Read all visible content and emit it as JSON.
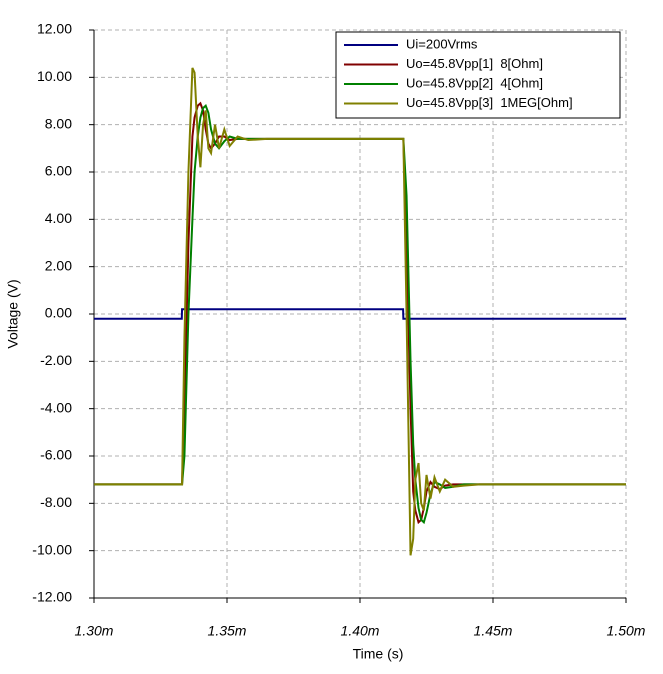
{
  "chart_data": {
    "type": "line",
    "xlabel": "Time (s)",
    "ylabel": "Voltage (V)",
    "xlim": [
      0.0013,
      0.0015
    ],
    "xticks": [
      {
        "value": 0.0013,
        "label": "1.30m"
      },
      {
        "value": 0.00135,
        "label": "1.35m"
      },
      {
        "value": 0.0014,
        "label": "1.40m"
      },
      {
        "value": 0.00145,
        "label": "1.45m"
      },
      {
        "value": 0.0015,
        "label": "1.50m"
      }
    ],
    "ylim": [
      -12,
      12
    ],
    "yticks": [
      {
        "value": 12,
        "label": "12.00"
      },
      {
        "value": 10,
        "label": "10.00"
      },
      {
        "value": 8,
        "label": "8.00"
      },
      {
        "value": 6,
        "label": "6.00"
      },
      {
        "value": 4,
        "label": "4.00"
      },
      {
        "value": 2,
        "label": "2.00"
      },
      {
        "value": 0,
        "label": "0.00"
      },
      {
        "value": -2,
        "label": "-2.00"
      },
      {
        "value": -4,
        "label": "-4.00"
      },
      {
        "value": -6,
        "label": "-6.00"
      },
      {
        "value": -8,
        "label": "-8.00"
      },
      {
        "value": -10,
        "label": "-10.00"
      },
      {
        "value": -12,
        "label": "-12.00"
      }
    ],
    "grid": true,
    "legend": "upper right",
    "x": [
      0.0013,
      0.001333,
      0.0013331,
      0.001334,
      0.0013355,
      0.001337,
      0.0013378,
      0.001339,
      0.00134,
      0.001341,
      0.001342,
      0.001343,
      0.001344,
      0.0013455,
      0.001347,
      0.001349,
      0.001351,
      0.001354,
      0.001358,
      0.001365,
      0.001415,
      0.0014162,
      0.0014163,
      0.0014175,
      0.001419,
      0.00142,
      0.0014208,
      0.001422,
      0.001423,
      0.001424,
      0.001425,
      0.0014265,
      0.001428,
      0.00143,
      0.001432,
      0.001435,
      0.001439,
      0.001445,
      0.0015
    ],
    "series": [
      {
        "name": "Ui=200Vrms",
        "color": "#000080",
        "values": [
          -0.2,
          -0.2,
          0.2,
          0.2,
          0.2,
          0.2,
          0.2,
          0.2,
          0.2,
          0.2,
          0.2,
          0.2,
          0.2,
          0.2,
          0.2,
          0.2,
          0.2,
          0.2,
          0.2,
          0.2,
          0.2,
          0.2,
          -0.2,
          -0.2,
          -0.2,
          -0.2,
          -0.2,
          -0.2,
          -0.2,
          -0.2,
          -0.2,
          -0.2,
          -0.2,
          -0.2,
          -0.2,
          -0.2,
          -0.2,
          -0.2,
          -0.2
        ]
      },
      {
        "name": "Uo=45.8Vpp[1]  8[Ohm]",
        "color": "#800000",
        "values": [
          -7.2,
          -7.2,
          -7.2,
          -4,
          3,
          7.5,
          8.3,
          8.8,
          8.9,
          8.6,
          7.8,
          7.2,
          7.0,
          7.2,
          7.5,
          7.5,
          7.35,
          7.4,
          7.4,
          7.4,
          7.4,
          7.4,
          7.4,
          3,
          -4,
          -7.5,
          -8.3,
          -8.8,
          -8.7,
          -8.2,
          -7.5,
          -7.1,
          -7.3,
          -7.4,
          -7.25,
          -7.2,
          -7.2,
          -7.2,
          -7.2
        ]
      },
      {
        "name": "Uo=45.8Vpp[2]  4[Ohm]",
        "color": "#008000",
        "values": [
          -7.2,
          -7.2,
          -7.2,
          -6,
          0,
          4,
          6,
          7.5,
          8.3,
          8.7,
          8.8,
          8.5,
          7.8,
          7.2,
          7.0,
          7.3,
          7.5,
          7.4,
          7.4,
          7.4,
          7.4,
          7.4,
          7.4,
          5,
          -2,
          -5.5,
          -7,
          -8.2,
          -8.7,
          -8.8,
          -8.4,
          -7.6,
          -7.1,
          -7.2,
          -7.35,
          -7.3,
          -7.2,
          -7.2,
          -7.2
        ]
      },
      {
        "name": "Uo=45.8Vpp[3]  1MEG[Ohm]",
        "color": "#808000",
        "values": [
          -7.2,
          -7.2,
          -7.2,
          -1,
          6,
          10.4,
          10.2,
          7.5,
          6.2,
          8.0,
          8.6,
          7.0,
          6.8,
          8.0,
          7.0,
          7.8,
          7.1,
          7.5,
          7.35,
          7.4,
          7.4,
          7.4,
          7.4,
          0,
          -10.2,
          -9.5,
          -7,
          -6.3,
          -8.0,
          -8.3,
          -6.8,
          -7.8,
          -6.9,
          -7.5,
          -7.0,
          -7.3,
          -7.25,
          -7.2,
          -7.2
        ]
      }
    ]
  }
}
